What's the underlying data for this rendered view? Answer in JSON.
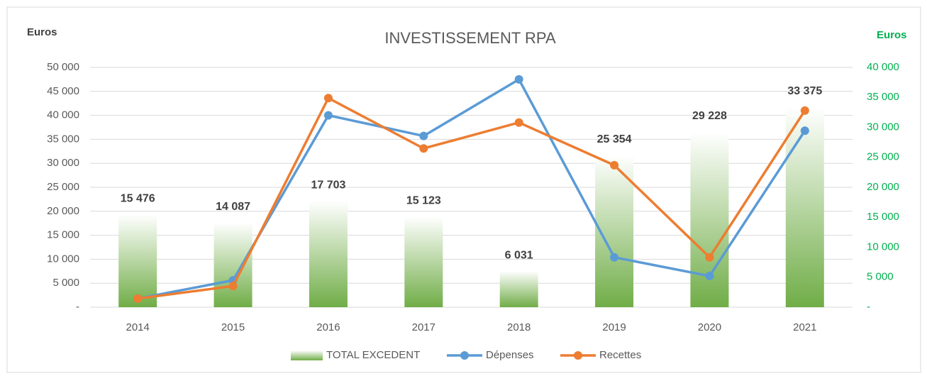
{
  "chart_data": {
    "type": "combo",
    "title": "INVESTISSEMENT RPA",
    "y_label": "Euros",
    "y2_label": "Euros",
    "categories": [
      "2014",
      "2015",
      "2016",
      "2017",
      "2018",
      "2019",
      "2020",
      "2021"
    ],
    "series": [
      {
        "name": "TOTAL EXCEDENT",
        "type": "bar",
        "axis": "y2",
        "color": "#70ad47",
        "values": [
          15476,
          14087,
          17703,
          15123,
          6031,
          25354,
          29228,
          33375
        ],
        "value_labels": [
          "15 476",
          "14 087",
          "17 703",
          "15 123",
          "6 031",
          "25 354",
          "29 228",
          "33 375"
        ]
      },
      {
        "name": "Dépenses",
        "type": "line",
        "color": "#5b9bd5",
        "values": [
          1800,
          5600,
          40000,
          35700,
          47500,
          10400,
          6500,
          36800
        ]
      },
      {
        "name": "Recettes",
        "type": "line",
        "color": "#ed7d31",
        "values": [
          1800,
          4400,
          43600,
          33100,
          38500,
          29600,
          10400,
          41000
        ]
      }
    ],
    "ylim": [
      0,
      50000
    ],
    "yticks": [
      {
        "value": 0,
        "label": "-"
      },
      {
        "value": 5000,
        "label": "5 000"
      },
      {
        "value": 10000,
        "label": "10 000"
      },
      {
        "value": 15000,
        "label": "15 000"
      },
      {
        "value": 20000,
        "label": "20 000"
      },
      {
        "value": 25000,
        "label": "25 000"
      },
      {
        "value": 30000,
        "label": "30 000"
      },
      {
        "value": 35000,
        "label": "35 000"
      },
      {
        "value": 40000,
        "label": "40 000"
      },
      {
        "value": 45000,
        "label": "45 000"
      },
      {
        "value": 50000,
        "label": "50 000"
      }
    ],
    "y2lim": [
      0,
      40000
    ],
    "y2ticks": [
      {
        "value": 0,
        "label": "-"
      },
      {
        "value": 5000,
        "label": "5 000"
      },
      {
        "value": 10000,
        "label": "10 000"
      },
      {
        "value": 15000,
        "label": "15 000"
      },
      {
        "value": 20000,
        "label": "20 000"
      },
      {
        "value": 25000,
        "label": "25 000"
      },
      {
        "value": 30000,
        "label": "30 000"
      },
      {
        "value": 35000,
        "label": "35 000"
      },
      {
        "value": 40000,
        "label": "40 000"
      }
    ],
    "y2_color": "#00b050",
    "grid": true,
    "legend": "bottom"
  }
}
